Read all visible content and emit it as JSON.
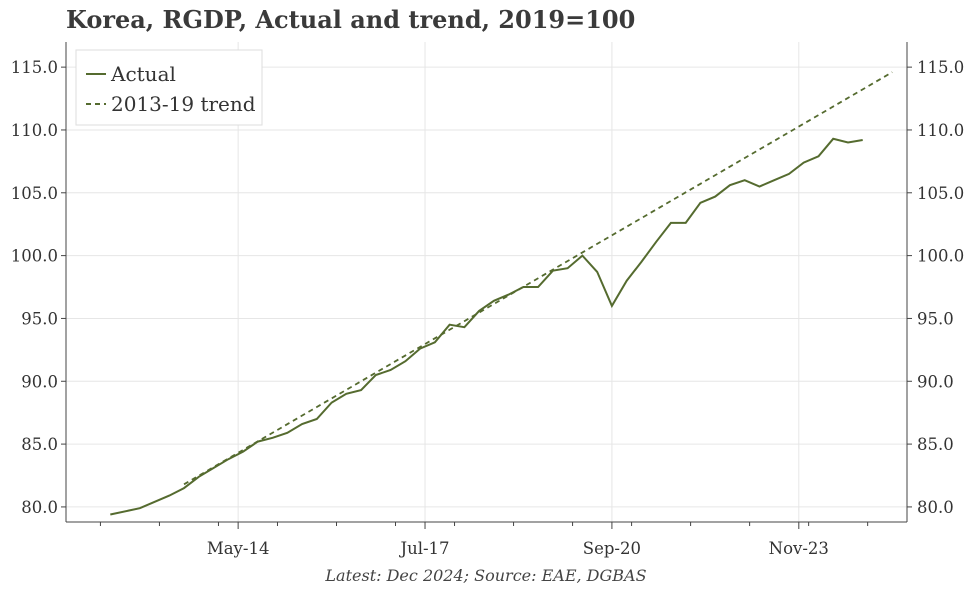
{
  "title": "Korea, RGDP, Actual and trend, 2019=100",
  "footnote": "Latest: Dec 2024; Source: EAE, DGBAS",
  "colors": {
    "series": "#556B2F",
    "grid": "#e6e6e6",
    "axis": "#444444"
  },
  "chart_data": {
    "type": "line",
    "title": "Korea, RGDP, Actual and trend, 2019=100",
    "xlabel": "",
    "ylabel": "",
    "x_range": [
      "2011-06",
      "2025-09"
    ],
    "ylim": [
      78.8,
      117.0
    ],
    "y_ticks": [
      80.0,
      85.0,
      90.0,
      95.0,
      100.0,
      105.0,
      110.0,
      115.0
    ],
    "y_tick_labels": [
      "80.0",
      "85.0",
      "90.0",
      "95.0",
      "100.0",
      "105.0",
      "110.0",
      "115.0"
    ],
    "y_axis_both_sides": true,
    "x_ticks": [
      "2014-05",
      "2017-07",
      "2020-09",
      "2023-11"
    ],
    "x_tick_labels": [
      "May-14",
      "Jul-17",
      "Sep-20",
      "Nov-23"
    ],
    "grid": true,
    "legend": {
      "position": "top-left",
      "entries": [
        "Actual",
        "2013-19 trend"
      ]
    },
    "series": [
      {
        "name": "Actual",
        "style": "solid",
        "color": "#556B2F",
        "points": [
          [
            "2012-03",
            79.4
          ],
          [
            "2012-09",
            79.9
          ],
          [
            "2013-03",
            80.9
          ],
          [
            "2013-06",
            81.5
          ],
          [
            "2013-09",
            82.4
          ],
          [
            "2013-12",
            83.1
          ],
          [
            "2014-03",
            83.8
          ],
          [
            "2014-06",
            84.4
          ],
          [
            "2014-09",
            85.2
          ],
          [
            "2014-12",
            85.5
          ],
          [
            "2015-03",
            85.9
          ],
          [
            "2015-06",
            86.6
          ],
          [
            "2015-09",
            87.0
          ],
          [
            "2015-12",
            88.3
          ],
          [
            "2016-03",
            89.0
          ],
          [
            "2016-06",
            89.3
          ],
          [
            "2016-09",
            90.5
          ],
          [
            "2016-12",
            90.9
          ],
          [
            "2017-03",
            91.6
          ],
          [
            "2017-06",
            92.6
          ],
          [
            "2017-09",
            93.1
          ],
          [
            "2017-12",
            94.5
          ],
          [
            "2018-03",
            94.3
          ],
          [
            "2018-06",
            95.6
          ],
          [
            "2018-09",
            96.4
          ],
          [
            "2018-12",
            96.9
          ],
          [
            "2019-03",
            97.5
          ],
          [
            "2019-06",
            97.5
          ],
          [
            "2019-09",
            98.8
          ],
          [
            "2019-12",
            99.0
          ],
          [
            "2020-03",
            100.0
          ],
          [
            "2020-06",
            98.7
          ],
          [
            "2020-09",
            96.0
          ],
          [
            "2020-12",
            98.0
          ],
          [
            "2021-03",
            99.5
          ],
          [
            "2021-06",
            101.1
          ],
          [
            "2021-09",
            102.6
          ],
          [
            "2021-12",
            102.6
          ],
          [
            "2022-03",
            104.2
          ],
          [
            "2022-06",
            104.7
          ],
          [
            "2022-09",
            105.6
          ],
          [
            "2022-12",
            106.0
          ],
          [
            "2023-03",
            105.5
          ],
          [
            "2023-06",
            106.0
          ],
          [
            "2023-09",
            106.5
          ],
          [
            "2023-12",
            107.4
          ],
          [
            "2024-03",
            107.9
          ],
          [
            "2024-06",
            109.3
          ],
          [
            "2024-09",
            109.0
          ],
          [
            "2024-12",
            109.2
          ]
        ]
      },
      {
        "name": "2013-19 trend",
        "style": "dashed",
        "color": "#556B2F",
        "points": [
          [
            "2013-06",
            81.8
          ],
          [
            "2025-06",
            114.6
          ]
        ]
      }
    ]
  }
}
